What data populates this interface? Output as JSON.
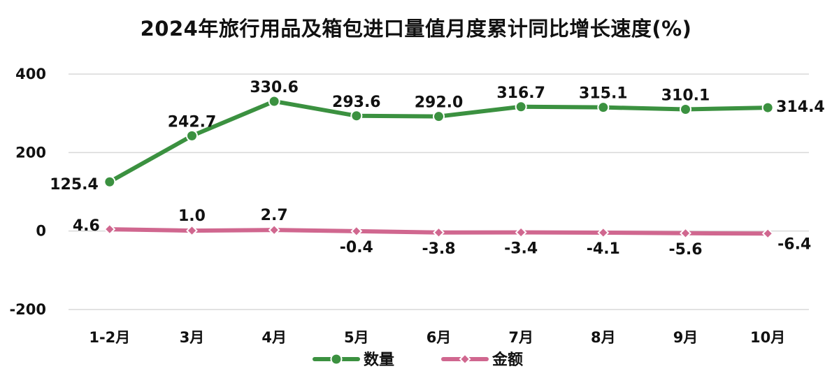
{
  "chart_data": {
    "type": "line",
    "title": "2024年旅行用品及箱包进口量值月度累计同比增长速度(%)",
    "categories": [
      "1-2月",
      "3月",
      "4月",
      "5月",
      "6月",
      "7月",
      "8月",
      "9月",
      "10月"
    ],
    "ylim": [
      -200,
      400
    ],
    "yticks": [
      "-200",
      "0",
      "200",
      "400"
    ],
    "grid": true,
    "legend_position": "bottom",
    "series": [
      {
        "name": "数量",
        "color": "#3b9140",
        "marker": "circle",
        "values": [
          125.4,
          242.7,
          330.6,
          293.6,
          292.0,
          316.7,
          315.1,
          310.1,
          314.4
        ],
        "labels": [
          "125.4",
          "242.7",
          "330.6",
          "293.6",
          "292.0",
          "316.7",
          "315.1",
          "310.1",
          "314.4"
        ]
      },
      {
        "name": "金额",
        "color": "#d0678f",
        "marker": "diamond",
        "values": [
          4.6,
          1.0,
          2.7,
          -0.4,
          -3.8,
          -3.4,
          -4.1,
          -5.6,
          -6.4
        ],
        "labels": [
          "4.6",
          "1.0",
          "2.7",
          "-0.4",
          "-3.8",
          "-3.4",
          "-4.1",
          "-5.6",
          "-6.4"
        ]
      }
    ]
  }
}
